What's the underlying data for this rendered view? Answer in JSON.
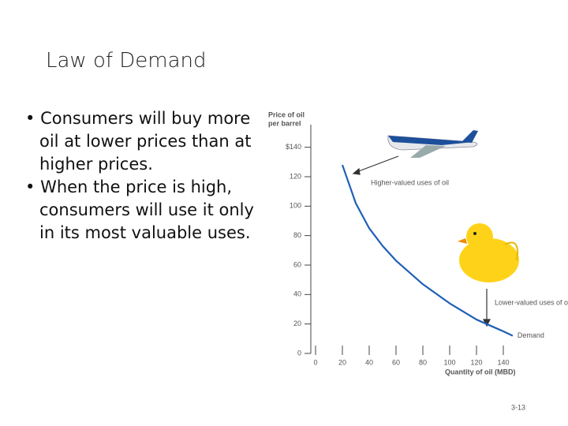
{
  "slide": {
    "title": "Law of Demand",
    "bullets": [
      "Consumers will buy more oil at lower prices than at higher prices.",
      "When the price is high, consumers will use it only in its most valuable uses."
    ],
    "page_number": "3-13"
  },
  "chart_data": {
    "type": "line",
    "ylabel": [
      "Price of oil",
      "per barrel"
    ],
    "xlabel": "Quantity of oil (MBD)",
    "x": [
      20,
      30,
      40,
      50,
      60,
      80,
      100,
      120,
      140,
      147
    ],
    "series": [
      {
        "name": "Demand",
        "color": "#1f5fb4",
        "values": [
          128,
          102,
          85,
          73,
          63,
          47,
          34,
          23,
          15,
          12
        ]
      }
    ],
    "xlim": [
      0,
      150
    ],
    "ylim": [
      0,
      150
    ],
    "xticks": [
      0,
      20,
      40,
      60,
      80,
      100,
      120,
      140
    ],
    "yticks": [
      0,
      20,
      40,
      60,
      80,
      100,
      120,
      {
        "value": 140,
        "label": "$140"
      }
    ],
    "annotations": [
      "Higher-valued uses of oil",
      "Lower-valued uses of oil"
    ]
  }
}
